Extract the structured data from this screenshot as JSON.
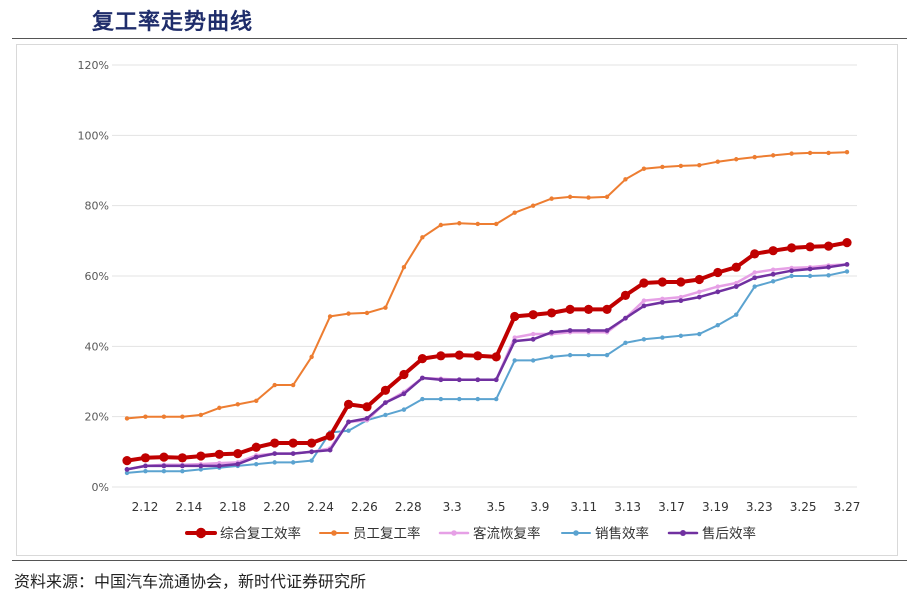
{
  "header": {
    "title": "复工率走势曲线"
  },
  "footer": {
    "source": "资料来源：中国汽车流通协会，新时代证券研究所"
  },
  "chart_data": {
    "type": "line",
    "title": "复工率走势曲线",
    "xlabel": "",
    "ylabel": "",
    "ylim": [
      0,
      120
    ],
    "y_ticks": [
      "0%",
      "20%",
      "40%",
      "60%",
      "80%",
      "100%",
      "120%"
    ],
    "x_tick_labels": [
      "2.12",
      "2.14",
      "2.18",
      "2.20",
      "2.24",
      "2.26",
      "2.28",
      "3.3",
      "3.5",
      "3.9",
      "3.11",
      "3.13",
      "3.17",
      "3.19",
      "3.23",
      "3.25",
      "3.27"
    ],
    "grid": true,
    "legend_position": "bottom",
    "series": [
      {
        "name": "综合复工效率",
        "color": "#c00000",
        "values": [
          7.5,
          8.3,
          8.5,
          8.3,
          8.8,
          9.3,
          9.5,
          11.3,
          12.5,
          12.5,
          12.5,
          14.5,
          23.5,
          22.8,
          27.5,
          32,
          36.5,
          37.3,
          37.5,
          37.3,
          37,
          48.5,
          49,
          49.5,
          50.5,
          50.5,
          50.5,
          54.5,
          58,
          58.3,
          58.3,
          59,
          61,
          62.5,
          66.3,
          67.2,
          68,
          68.3,
          68.5,
          69.5
        ]
      },
      {
        "name": "员工复工率",
        "color": "#ed7d31",
        "values": [
          19.5,
          20,
          20,
          20,
          20.5,
          22.5,
          23.5,
          24.5,
          29,
          29,
          37,
          48.5,
          49.3,
          49.5,
          51,
          62.5,
          71,
          74.5,
          75,
          74.8,
          74.8,
          78,
          80,
          82,
          82.5,
          82.3,
          82.5,
          87.5,
          90.5,
          91,
          91.3,
          91.5,
          92.5,
          93.2,
          93.8,
          94.3,
          94.8,
          95,
          95,
          95.2
        ]
      },
      {
        "name": "客流恢复率",
        "color": "#e6a0e6",
        "values": [
          5,
          6,
          6.3,
          6.3,
          6.5,
          6.8,
          7,
          9,
          9.5,
          9.5,
          10,
          11,
          18.5,
          19,
          24,
          27,
          31,
          30.8,
          30.5,
          30.5,
          30.5,
          42.5,
          43.5,
          43.5,
          44,
          44,
          44,
          48,
          53,
          53.5,
          54,
          55.5,
          57,
          58,
          61,
          61.8,
          62.3,
          62.5,
          63,
          63.3
        ]
      },
      {
        "name": "销售效率",
        "color": "#5ba3d0",
        "values": [
          4,
          4.5,
          4.5,
          4.5,
          5,
          5.5,
          6,
          6.5,
          7,
          7,
          7.5,
          15.5,
          16,
          19,
          20.5,
          22,
          25,
          25,
          25,
          25,
          25,
          36,
          36,
          37,
          37.5,
          37.5,
          37.5,
          41,
          42,
          42.5,
          43,
          43.5,
          46,
          49,
          57,
          58.5,
          60,
          60,
          60.2,
          61.3
        ]
      },
      {
        "name": "售后效率",
        "color": "#7030a0",
        "values": [
          5,
          6,
          6,
          6,
          6,
          6,
          6.5,
          8.5,
          9.5,
          9.5,
          10,
          10.5,
          18.5,
          19.5,
          24,
          26.5,
          31,
          30.5,
          30.5,
          30.5,
          30.5,
          41.5,
          42,
          44,
          44.5,
          44.5,
          44.5,
          48,
          51.5,
          52.5,
          53,
          54,
          55.5,
          57,
          59.5,
          60.5,
          61.5,
          62,
          62.5,
          63.3
        ]
      }
    ]
  }
}
